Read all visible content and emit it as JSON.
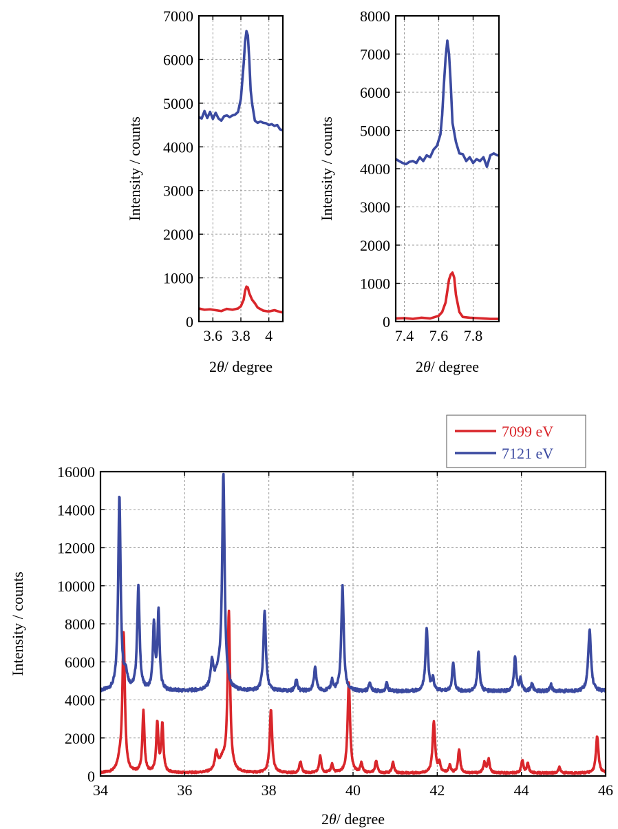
{
  "chart_data": [
    {
      "type": "line",
      "xlabel_prefix": "2",
      "xlabel_symbol": "θ",
      "xlabel_suffix": "/ degree",
      "ylabel": "Intensity / counts",
      "xlim": [
        3.5,
        4.1
      ],
      "ylim": [
        0,
        7000
      ],
      "x_ticks": [
        3.6,
        3.8,
        4.0
      ],
      "x_tick_labels": [
        "3.6",
        "3.8",
        "4"
      ],
      "y_ticks": [
        0,
        1000,
        2000,
        3000,
        4000,
        5000,
        6000,
        7000
      ],
      "y_tick_labels": [
        "0",
        "1000",
        "2000",
        "3000",
        "4000",
        "5000",
        "6000",
        "7000"
      ],
      "grid": true,
      "series": [
        {
          "color": "#3b4aa0",
          "x": [
            3.5,
            3.52,
            3.54,
            3.56,
            3.58,
            3.6,
            3.62,
            3.64,
            3.66,
            3.68,
            3.7,
            3.72,
            3.74,
            3.76,
            3.78,
            3.8,
            3.81,
            3.82,
            3.83,
            3.84,
            3.85,
            3.86,
            3.87,
            3.88,
            3.9,
            3.92,
            3.94,
            3.96,
            3.98,
            4.0,
            4.02,
            4.04,
            4.06,
            4.08,
            4.1
          ],
          "y": [
            4680,
            4650,
            4820,
            4660,
            4800,
            4640,
            4780,
            4650,
            4600,
            4700,
            4720,
            4680,
            4720,
            4740,
            4800,
            5100,
            5500,
            5900,
            6400,
            6650,
            6550,
            6000,
            5300,
            5000,
            4600,
            4550,
            4580,
            4550,
            4540,
            4500,
            4520,
            4480,
            4500,
            4400,
            4380
          ]
        },
        {
          "color": "#d9262b",
          "x": [
            3.5,
            3.54,
            3.58,
            3.62,
            3.66,
            3.7,
            3.74,
            3.78,
            3.8,
            3.82,
            3.83,
            3.84,
            3.85,
            3.86,
            3.88,
            3.9,
            3.92,
            3.96,
            4.0,
            4.04,
            4.08,
            4.1
          ],
          "y": [
            300,
            270,
            280,
            260,
            240,
            290,
            270,
            300,
            350,
            500,
            700,
            800,
            780,
            650,
            500,
            420,
            320,
            250,
            230,
            260,
            220,
            210
          ]
        }
      ]
    },
    {
      "type": "line",
      "xlabel_prefix": "2",
      "xlabel_symbol": "θ",
      "xlabel_suffix": "/ degree",
      "ylabel": "Intensity / counts",
      "xlim": [
        7.35,
        7.95
      ],
      "ylim": [
        0,
        8000
      ],
      "x_ticks": [
        7.4,
        7.6,
        7.8
      ],
      "x_tick_labels": [
        "7.4",
        "7.6",
        "7.8"
      ],
      "y_ticks": [
        0,
        1000,
        2000,
        3000,
        4000,
        5000,
        6000,
        7000,
        8000
      ],
      "y_tick_labels": [
        "0",
        "1000",
        "2000",
        "3000",
        "4000",
        "5000",
        "6000",
        "7000",
        "8000"
      ],
      "grid": true,
      "series": [
        {
          "color": "#3b4aa0",
          "x": [
            7.35,
            7.37,
            7.39,
            7.41,
            7.43,
            7.45,
            7.47,
            7.49,
            7.51,
            7.53,
            7.55,
            7.57,
            7.59,
            7.61,
            7.62,
            7.63,
            7.64,
            7.65,
            7.66,
            7.67,
            7.68,
            7.7,
            7.72,
            7.74,
            7.76,
            7.78,
            7.8,
            7.82,
            7.84,
            7.86,
            7.88,
            7.9,
            7.92,
            7.94,
            7.95
          ],
          "y": [
            4250,
            4200,
            4150,
            4120,
            4180,
            4200,
            4150,
            4300,
            4200,
            4350,
            4300,
            4500,
            4600,
            4900,
            5400,
            6200,
            6900,
            7350,
            7000,
            6200,
            5200,
            4700,
            4400,
            4380,
            4200,
            4300,
            4150,
            4250,
            4200,
            4300,
            4050,
            4350,
            4400,
            4350,
            4350
          ]
        },
        {
          "color": "#d9262b",
          "x": [
            7.35,
            7.4,
            7.45,
            7.5,
            7.55,
            7.6,
            7.62,
            7.64,
            7.66,
            7.67,
            7.68,
            7.69,
            7.7,
            7.72,
            7.74,
            7.78,
            7.82,
            7.86,
            7.9,
            7.95
          ],
          "y": [
            80,
            90,
            70,
            100,
            80,
            150,
            250,
            500,
            1100,
            1230,
            1280,
            1150,
            700,
            250,
            120,
            100,
            90,
            80,
            70,
            70
          ]
        }
      ]
    },
    {
      "type": "line",
      "xlabel_prefix": "2",
      "xlabel_symbol": "θ",
      "xlabel_suffix": "/ degree",
      "ylabel": "Intensity / counts",
      "xlim": [
        34,
        46
      ],
      "ylim": [
        0,
        16000
      ],
      "x_ticks": [
        34,
        36,
        38,
        40,
        42,
        44,
        46
      ],
      "x_tick_labels": [
        "34",
        "36",
        "38",
        "40",
        "42",
        "44",
        "46"
      ],
      "y_ticks": [
        0,
        2000,
        4000,
        6000,
        8000,
        10000,
        12000,
        14000,
        16000
      ],
      "y_tick_labels": [
        "0",
        "2000",
        "4000",
        "6000",
        "8000",
        "10000",
        "12000",
        "14000",
        "16000"
      ],
      "grid": true,
      "legend_position": "top-right, above plot",
      "series": [
        {
          "name": "7099 eV",
          "color": "#d9262b",
          "baseline": 150,
          "peaks": [
            [
              34.55,
              7300,
              0.035
            ],
            [
              34.45,
              500,
              0.06
            ],
            [
              35.02,
              3200,
              0.03
            ],
            [
              35.35,
              2600,
              0.03
            ],
            [
              35.47,
              2500,
              0.03
            ],
            [
              36.75,
              900,
              0.04
            ],
            [
              37.05,
              8300,
              0.035
            ],
            [
              36.9,
              600,
              0.1
            ],
            [
              38.05,
              3300,
              0.035
            ],
            [
              38.75,
              600,
              0.03
            ],
            [
              39.22,
              900,
              0.03
            ],
            [
              39.5,
              450,
              0.03
            ],
            [
              39.9,
              4800,
              0.035
            ],
            [
              40.2,
              500,
              0.03
            ],
            [
              40.55,
              650,
              0.03
            ],
            [
              40.95,
              550,
              0.03
            ],
            [
              41.92,
              2700,
              0.035
            ],
            [
              42.05,
              500,
              0.03
            ],
            [
              42.3,
              400,
              0.03
            ],
            [
              42.52,
              1250,
              0.03
            ],
            [
              43.12,
              550,
              0.03
            ],
            [
              43.22,
              700,
              0.03
            ],
            [
              44.02,
              650,
              0.03
            ],
            [
              44.15,
              500,
              0.03
            ],
            [
              44.9,
              300,
              0.03
            ],
            [
              45.8,
              1950,
              0.035
            ]
          ]
        },
        {
          "name": "7121 eV",
          "color": "#3b4aa0",
          "baseline": 4450,
          "peaks": [
            [
              34.45,
              10200,
              0.035
            ],
            [
              34.6,
              800,
              0.05
            ],
            [
              34.9,
              5400,
              0.035
            ],
            [
              35.27,
              3400,
              0.03
            ],
            [
              35.38,
              4100,
              0.03
            ],
            [
              36.65,
              1300,
              0.04
            ],
            [
              36.92,
              11100,
              0.035
            ],
            [
              36.8,
              800,
              0.1
            ],
            [
              37.9,
              4200,
              0.035
            ],
            [
              38.65,
              650,
              0.03
            ],
            [
              39.1,
              1200,
              0.035
            ],
            [
              39.5,
              550,
              0.03
            ],
            [
              39.75,
              5500,
              0.035
            ],
            [
              40.4,
              450,
              0.03
            ],
            [
              40.8,
              400,
              0.03
            ],
            [
              41.75,
              3300,
              0.035
            ],
            [
              41.9,
              600,
              0.03
            ],
            [
              42.38,
              1550,
              0.03
            ],
            [
              42.98,
              2100,
              0.03
            ],
            [
              43.85,
              1850,
              0.03
            ],
            [
              43.98,
              600,
              0.03
            ],
            [
              44.25,
              400,
              0.03
            ],
            [
              44.7,
              350,
              0.03
            ],
            [
              45.62,
              3200,
              0.04
            ]
          ]
        }
      ]
    }
  ]
}
